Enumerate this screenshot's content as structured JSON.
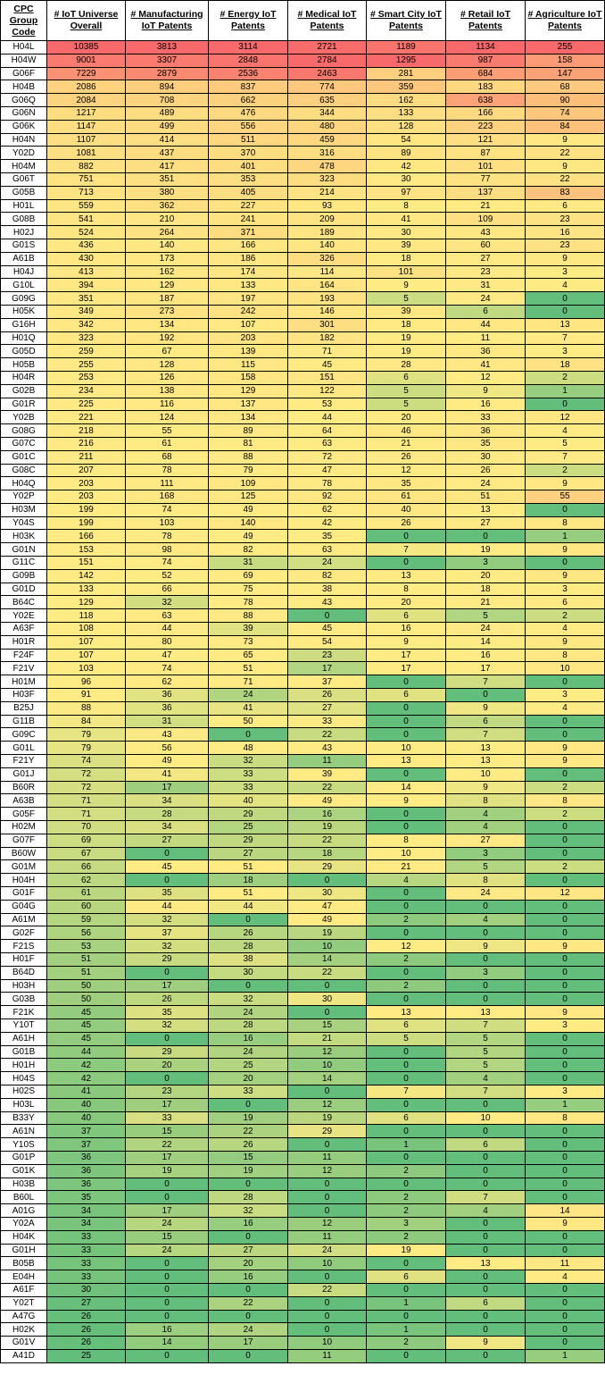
{
  "headers": [
    "CPC Group Code",
    "# IoT Universe Overall",
    "# Manufacturing IoT Patents",
    "# Energy IoT Patents",
    "# Medical IoT Patents",
    "# Smart City IoT Patents",
    "# Retail IoT Patents",
    "# Agriculture IoT Patents"
  ],
  "rows": [
    [
      "H04L",
      10385,
      3813,
      3114,
      2721,
      1189,
      1134,
      255
    ],
    [
      "H04W",
      9001,
      3307,
      2848,
      2784,
      1295,
      987,
      158
    ],
    [
      "G06F",
      7229,
      2879,
      2536,
      2463,
      281,
      684,
      147
    ],
    [
      "H04B",
      2086,
      894,
      837,
      774,
      359,
      183,
      68
    ],
    [
      "G06Q",
      2084,
      708,
      662,
      635,
      162,
      638,
      90
    ],
    [
      "G06N",
      1217,
      489,
      476,
      344,
      133,
      166,
      74
    ],
    [
      "G06K",
      1147,
      499,
      556,
      480,
      128,
      223,
      84
    ],
    [
      "H04N",
      1107,
      414,
      511,
      459,
      54,
      121,
      9
    ],
    [
      "Y02D",
      1081,
      437,
      370,
      316,
      89,
      87,
      22
    ],
    [
      "H04M",
      882,
      417,
      401,
      478,
      42,
      101,
      9
    ],
    [
      "G06T",
      751,
      351,
      353,
      323,
      30,
      77,
      22
    ],
    [
      "G05B",
      713,
      380,
      405,
      214,
      97,
      137,
      83
    ],
    [
      "H01L",
      559,
      362,
      227,
      93,
      8,
      21,
      6
    ],
    [
      "G08B",
      541,
      210,
      241,
      209,
      41,
      109,
      23
    ],
    [
      "H02J",
      524,
      264,
      371,
      189,
      30,
      43,
      16
    ],
    [
      "G01S",
      436,
      140,
      166,
      140,
      39,
      60,
      23
    ],
    [
      "A61B",
      430,
      173,
      186,
      326,
      18,
      27,
      9
    ],
    [
      "H04J",
      413,
      162,
      174,
      114,
      101,
      23,
      3
    ],
    [
      "G10L",
      394,
      129,
      133,
      164,
      9,
      31,
      4
    ],
    [
      "G09G",
      351,
      187,
      197,
      193,
      5,
      24,
      0
    ],
    [
      "H05K",
      349,
      273,
      242,
      146,
      39,
      6,
      0
    ],
    [
      "G16H",
      342,
      134,
      107,
      301,
      18,
      44,
      13
    ],
    [
      "H01Q",
      323,
      192,
      203,
      182,
      19,
      11,
      7
    ],
    [
      "G05D",
      259,
      67,
      139,
      71,
      19,
      36,
      3
    ],
    [
      "H05B",
      255,
      128,
      115,
      45,
      28,
      41,
      18
    ],
    [
      "H04R",
      253,
      126,
      158,
      151,
      6,
      12,
      2
    ],
    [
      "G02B",
      234,
      138,
      129,
      122,
      5,
      9,
      1
    ],
    [
      "G01R",
      225,
      116,
      137,
      53,
      5,
      16,
      0
    ],
    [
      "Y02B",
      221,
      124,
      134,
      44,
      20,
      33,
      12
    ],
    [
      "G08G",
      218,
      55,
      89,
      64,
      46,
      36,
      4
    ],
    [
      "G07C",
      216,
      61,
      81,
      63,
      21,
      35,
      5
    ],
    [
      "G01C",
      211,
      68,
      88,
      72,
      26,
      30,
      7
    ],
    [
      "G08C",
      207,
      78,
      79,
      47,
      12,
      26,
      2
    ],
    [
      "H04Q",
      203,
      111,
      109,
      78,
      35,
      24,
      9
    ],
    [
      "Y02P",
      203,
      168,
      125,
      92,
      61,
      51,
      55
    ],
    [
      "H03M",
      199,
      74,
      49,
      62,
      40,
      13,
      0
    ],
    [
      "Y04S",
      199,
      103,
      140,
      42,
      26,
      27,
      8
    ],
    [
      "H03K",
      166,
      78,
      49,
      35,
      0,
      0,
      1
    ],
    [
      "G01N",
      153,
      98,
      82,
      63,
      7,
      19,
      9
    ],
    [
      "G11C",
      151,
      74,
      31,
      24,
      0,
      3,
      0
    ],
    [
      "G09B",
      142,
      52,
      69,
      82,
      13,
      20,
      9
    ],
    [
      "G01D",
      133,
      66,
      75,
      38,
      8,
      18,
      3
    ],
    [
      "B64C",
      129,
      32,
      78,
      43,
      20,
      21,
      6
    ],
    [
      "Y02E",
      118,
      63,
      88,
      0,
      6,
      5,
      2
    ],
    [
      "A63F",
      108,
      44,
      39,
      45,
      16,
      24,
      4
    ],
    [
      "H01R",
      107,
      80,
      73,
      54,
      9,
      14,
      9
    ],
    [
      "F24F",
      107,
      47,
      65,
      23,
      17,
      16,
      8
    ],
    [
      "F21V",
      103,
      74,
      51,
      17,
      17,
      17,
      10
    ],
    [
      "H01M",
      96,
      62,
      71,
      37,
      0,
      7,
      0
    ],
    [
      "H03F",
      91,
      36,
      24,
      26,
      6,
      0,
      3
    ],
    [
      "B25J",
      88,
      36,
      41,
      27,
      0,
      9,
      4
    ],
    [
      "G11B",
      84,
      31,
      50,
      33,
      0,
      6,
      0
    ],
    [
      "G09C",
      79,
      43,
      0,
      22,
      0,
      7,
      0
    ],
    [
      "G01L",
      79,
      56,
      48,
      43,
      10,
      13,
      9
    ],
    [
      "F21Y",
      74,
      49,
      32,
      11,
      13,
      13,
      9
    ],
    [
      "G01J",
      72,
      41,
      33,
      39,
      0,
      10,
      0
    ],
    [
      "B60R",
      72,
      17,
      33,
      22,
      14,
      9,
      2
    ],
    [
      "A63B",
      71,
      34,
      40,
      49,
      9,
      8,
      8
    ],
    [
      "G05F",
      71,
      28,
      29,
      16,
      0,
      4,
      2
    ],
    [
      "H02M",
      70,
      34,
      25,
      19,
      0,
      4,
      0
    ],
    [
      "G07F",
      69,
      27,
      29,
      22,
      8,
      27,
      0
    ],
    [
      "B60W",
      67,
      0,
      27,
      18,
      10,
      3,
      0
    ],
    [
      "G01M",
      66,
      45,
      51,
      29,
      21,
      5,
      2
    ],
    [
      "H04H",
      62,
      0,
      18,
      0,
      4,
      8,
      0
    ],
    [
      "G01F",
      61,
      35,
      51,
      30,
      0,
      24,
      12
    ],
    [
      "G04G",
      60,
      44,
      44,
      47,
      0,
      0,
      0
    ],
    [
      "A61M",
      59,
      32,
      0,
      49,
      2,
      4,
      0
    ],
    [
      "G02F",
      56,
      37,
      26,
      19,
      0,
      0,
      0
    ],
    [
      "F21S",
      53,
      32,
      28,
      10,
      12,
      9,
      9
    ],
    [
      "H01F",
      51,
      29,
      38,
      14,
      2,
      0,
      0
    ],
    [
      "B64D",
      51,
      0,
      30,
      22,
      0,
      3,
      0
    ],
    [
      "H03H",
      50,
      17,
      0,
      0,
      2,
      0,
      0
    ],
    [
      "G03B",
      50,
      26,
      32,
      30,
      0,
      0,
      0
    ],
    [
      "F21K",
      45,
      35,
      24,
      0,
      13,
      13,
      9
    ],
    [
      "Y10T",
      45,
      32,
      28,
      15,
      6,
      7,
      3
    ],
    [
      "A61H",
      45,
      0,
      16,
      21,
      5,
      5,
      0
    ],
    [
      "G01B",
      44,
      29,
      24,
      12,
      0,
      5,
      0
    ],
    [
      "H01H",
      42,
      20,
      25,
      10,
      0,
      5,
      0
    ],
    [
      "H04S",
      42,
      0,
      20,
      14,
      0,
      4,
      0
    ],
    [
      "H02S",
      41,
      23,
      33,
      0,
      7,
      7,
      3
    ],
    [
      "H03L",
      40,
      17,
      0,
      12,
      0,
      0,
      1
    ],
    [
      "B33Y",
      40,
      33,
      19,
      19,
      6,
      10,
      8
    ],
    [
      "A61N",
      37,
      15,
      22,
      29,
      0,
      0,
      0
    ],
    [
      "Y10S",
      37,
      22,
      26,
      0,
      1,
      6,
      0
    ],
    [
      "G01P",
      36,
      17,
      15,
      11,
      0,
      0,
      0
    ],
    [
      "G01K",
      36,
      19,
      19,
      12,
      2,
      0,
      0
    ],
    [
      "H03B",
      36,
      0,
      0,
      0,
      0,
      0,
      0
    ],
    [
      "B60L",
      35,
      0,
      28,
      0,
      2,
      7,
      0
    ],
    [
      "A01G",
      34,
      17,
      32,
      0,
      2,
      4,
      14
    ],
    [
      "Y02A",
      34,
      24,
      16,
      12,
      3,
      0,
      9
    ],
    [
      "H04K",
      33,
      15,
      0,
      11,
      2,
      0,
      0
    ],
    [
      "G01H",
      33,
      24,
      27,
      24,
      19,
      0,
      0
    ],
    [
      "B05B",
      33,
      0,
      20,
      10,
      0,
      13,
      11
    ],
    [
      "E04H",
      33,
      0,
      16,
      0,
      6,
      0,
      4
    ],
    [
      "A61F",
      30,
      0,
      0,
      22,
      0,
      0,
      0
    ],
    [
      "Y02T",
      27,
      0,
      22,
      0,
      1,
      6,
      0
    ],
    [
      "A47G",
      26,
      0,
      0,
      0,
      0,
      0,
      0
    ],
    [
      "H02K",
      26,
      16,
      24,
      0,
      1,
      0,
      0
    ],
    [
      "G01V",
      26,
      14,
      17,
      10,
      2,
      9,
      0
    ],
    [
      "A41D",
      25,
      0,
      0,
      11,
      0,
      0,
      1
    ]
  ]
}
